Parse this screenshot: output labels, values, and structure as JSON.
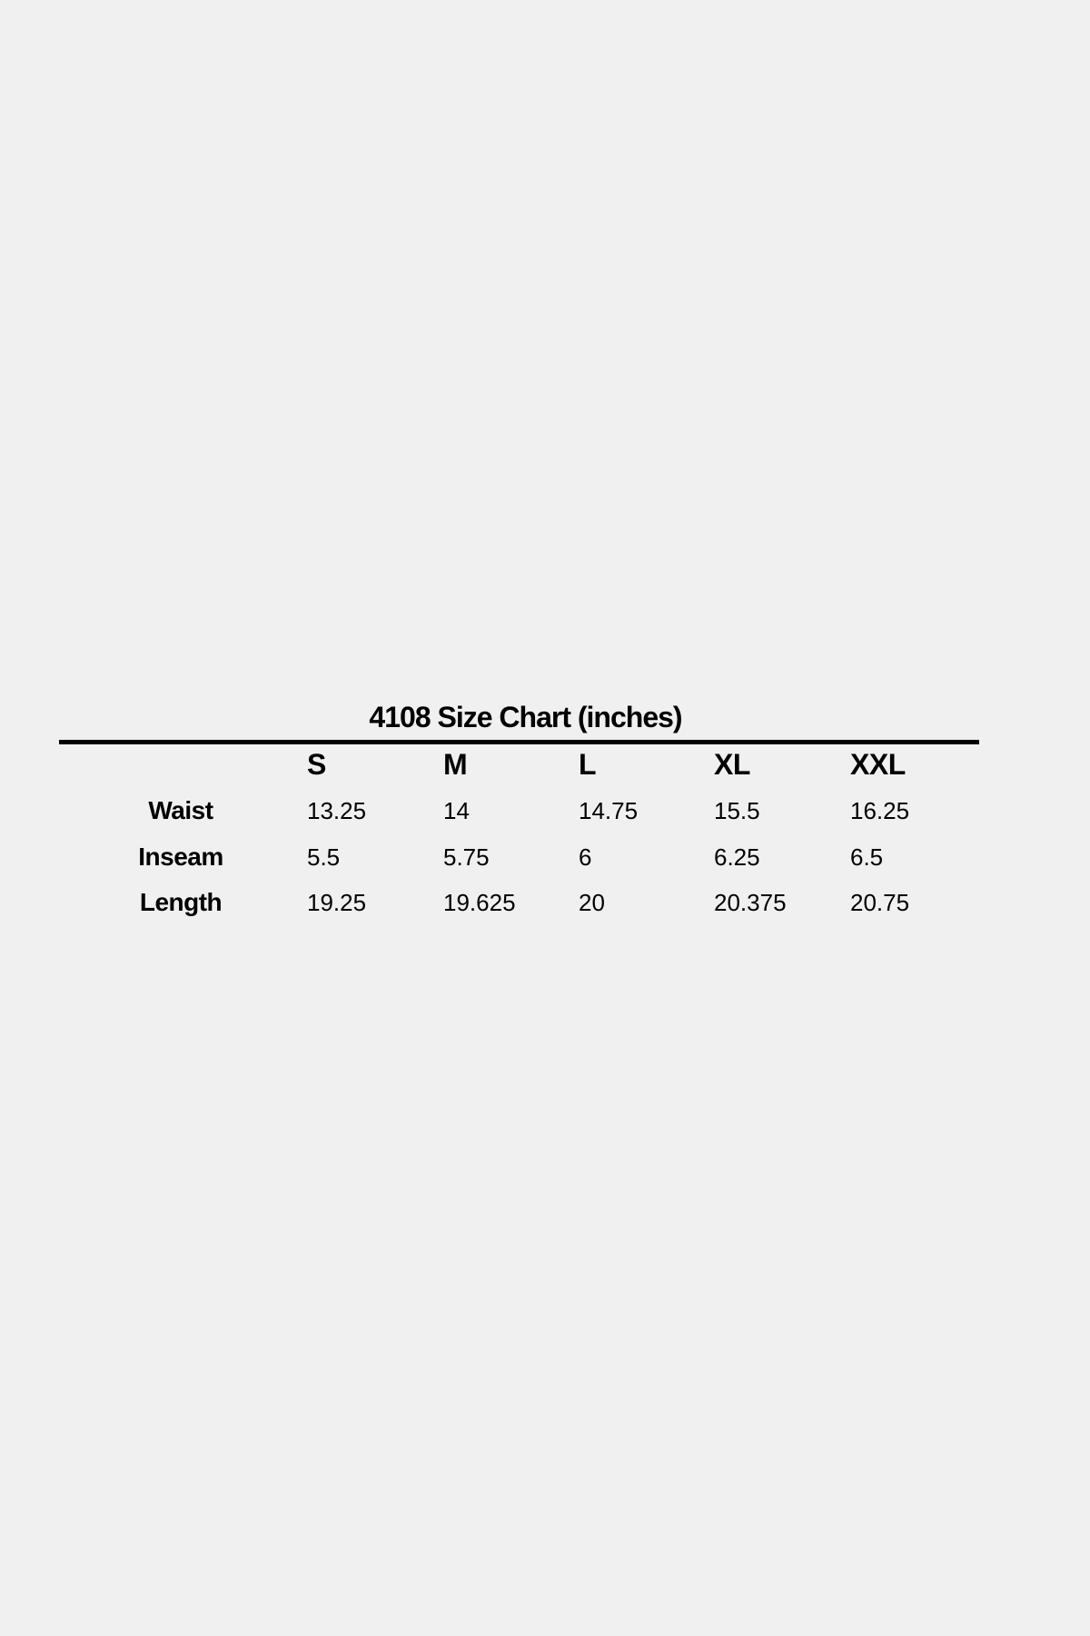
{
  "title": "4108 Size Chart (inches)",
  "columns": [
    "S",
    "M",
    "L",
    "XL",
    "XXL"
  ],
  "rows": [
    {
      "label": "Waist",
      "values": [
        "13.25",
        "14",
        "14.75",
        "15.5",
        "16.25"
      ]
    },
    {
      "label": "Inseam",
      "values": [
        "5.5",
        "5.75",
        "6",
        "6.25",
        "6.5"
      ]
    },
    {
      "label": "Length",
      "values": [
        "19.25",
        "19.625",
        "20",
        "20.375",
        "20.75"
      ]
    }
  ]
}
